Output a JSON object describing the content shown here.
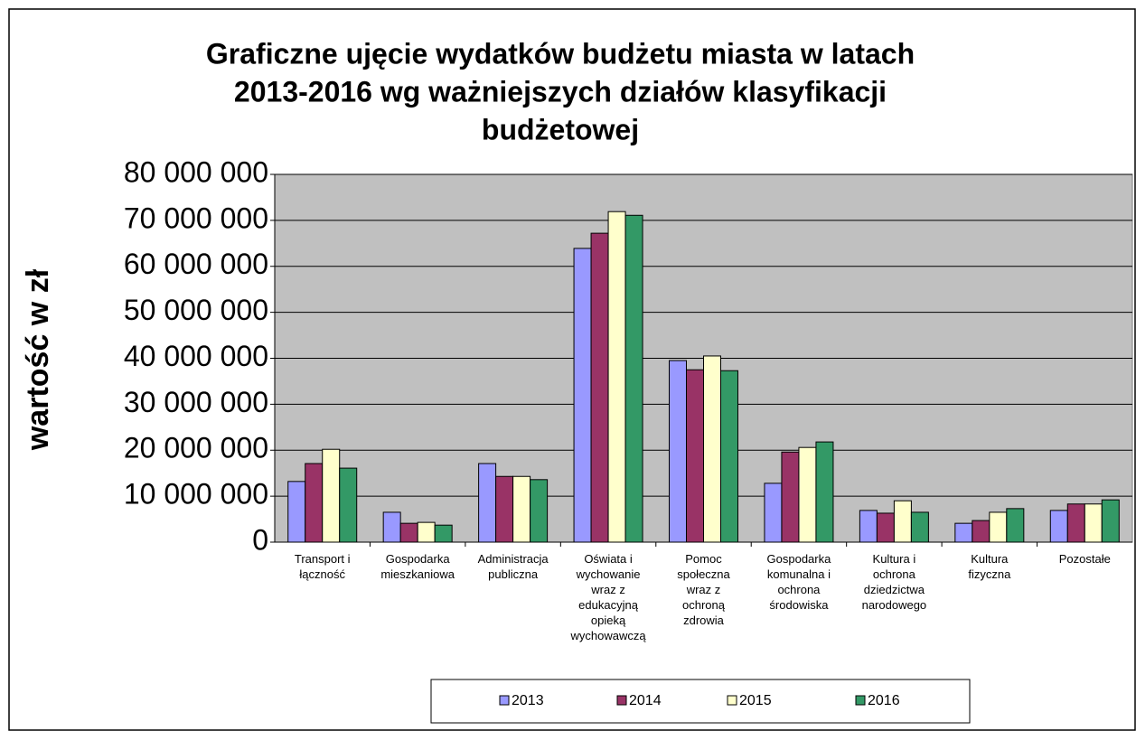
{
  "chart_data": {
    "type": "bar",
    "title": [
      "Graficzne ujęcie wydatków budżetu miasta  w latach",
      "2013-2016 wg ważniejszych działów klasyfikacji",
      "budżetowej"
    ],
    "y_label": "wartość w zł",
    "categories": [
      "Transport i\nłączność",
      "Gospodarka\nmieszkaniowa",
      "Administracja\npubliczna",
      "Oświata i\nwychowanie\nwraz z\nedukacyjną\nopieką\nwychowawczą",
      "Pomoc\nspołeczna\nwraz z\nochroną\nzdrowia",
      "Gospodarka\nkomunalna i\nochrona\nśrodowiska",
      "Kultura i\nochrona\ndziedzictwa\nnarodowego",
      "Kultura\nfizyczna",
      "Pozostałe"
    ],
    "series": [
      {
        "name": "2013",
        "color": "#9999ff",
        "values": [
          13200000,
          6500000,
          17100000,
          63900000,
          39500000,
          12800000,
          6900000,
          4100000,
          6900000
        ]
      },
      {
        "name": "2014",
        "color": "#993366",
        "values": [
          17100000,
          4100000,
          14300000,
          67200000,
          37500000,
          19600000,
          6300000,
          4700000,
          8300000
        ]
      },
      {
        "name": "2015",
        "color": "#ffffcc",
        "values": [
          20200000,
          4300000,
          14300000,
          71900000,
          40500000,
          20600000,
          9000000,
          6500000,
          8300000
        ]
      },
      {
        "name": "2016",
        "color": "#339966",
        "values": [
          16100000,
          3700000,
          13600000,
          71100000,
          37300000,
          21800000,
          6500000,
          7300000,
          9200000
        ]
      }
    ],
    "ylim": [
      0,
      80000000
    ],
    "yticks": [
      0,
      {
        "value": 10000000,
        "label": "10 000 000"
      },
      {
        "value": 20000000,
        "label": "20 000 000"
      },
      {
        "value": 30000000,
        "label": "30 000 000"
      },
      {
        "value": 40000000,
        "label": "40 000 000"
      },
      {
        "value": 50000000,
        "label": "50 000 000"
      },
      {
        "value": 60000000,
        "label": "60 000 000"
      },
      {
        "value": 70000000,
        "label": "70 000 000"
      },
      {
        "value": 80000000,
        "label": "80 000 000"
      }
    ],
    "grid": true,
    "plot_background": "#c0c0c0",
    "legend": "bottom"
  }
}
